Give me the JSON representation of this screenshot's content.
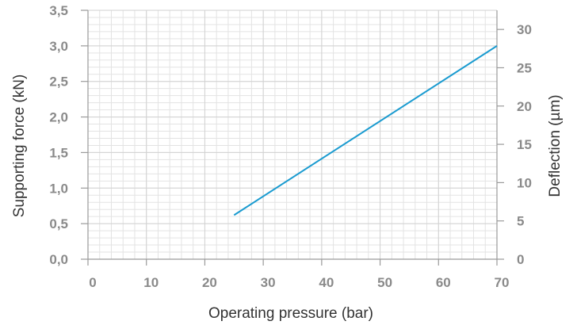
{
  "chart_data": {
    "type": "line",
    "xlabel": "Operating pressure (bar)",
    "ylabel_left": "Supporting force (kN)",
    "ylabel_right": "Deflection (µm)",
    "x_ticks": [
      "0",
      "10",
      "20",
      "30",
      "40",
      "50",
      "60",
      "70"
    ],
    "y_left_ticks": [
      "0,0",
      "0,5",
      "1,0",
      "1,5",
      "2,0",
      "2,5",
      "3,0",
      "3,5"
    ],
    "y_right_ticks": [
      "0",
      "5",
      "10",
      "15",
      "20",
      "25",
      "30"
    ],
    "xlim": [
      0,
      70
    ],
    "ylim_left": [
      0,
      3.5
    ],
    "ylim_right": [
      0,
      32.5
    ],
    "grid": true,
    "series": [
      {
        "axis": "left",
        "color": "#1a9bd0",
        "x": [
          25,
          70
        ],
        "y": [
          0.62,
          3.0
        ]
      }
    ]
  },
  "colors": {
    "line": "#1a9bd0",
    "grid": "#e3e3e3",
    "axis": "#9a9a9a",
    "tick_text": "#8a8a8a"
  }
}
